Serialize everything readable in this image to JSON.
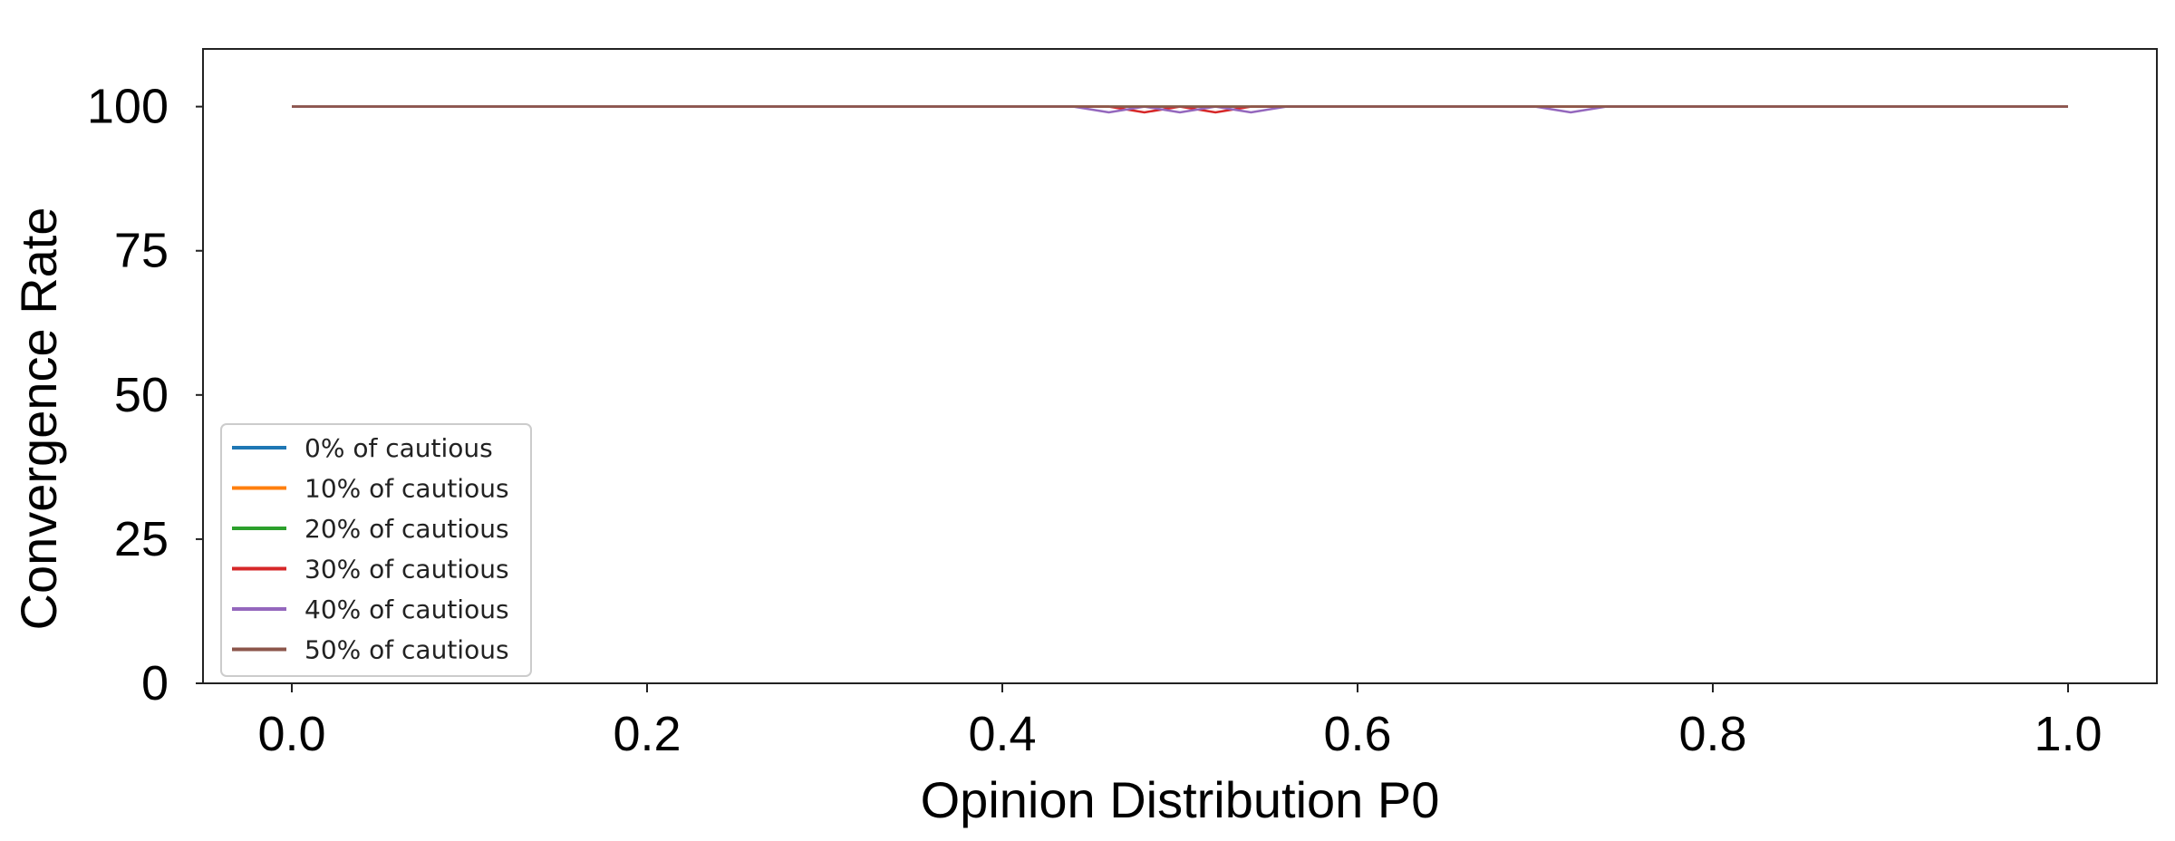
{
  "chart_data": {
    "type": "line",
    "xlabel": "Opinion Distribution P0",
    "ylabel": "Convergence Rate",
    "xlim": [
      -0.05,
      1.05
    ],
    "ylim": [
      0,
      110
    ],
    "xticks": [
      0.0,
      0.2,
      0.4,
      0.6,
      0.8,
      1.0
    ],
    "xtick_labels": [
      "0.0",
      "0.2",
      "0.4",
      "0.6",
      "0.8",
      "1.0"
    ],
    "yticks": [
      0,
      25,
      50,
      75,
      100
    ],
    "ytick_labels": [
      "0",
      "25",
      "50",
      "75",
      "100"
    ],
    "grid": false,
    "legend_position": "lower-left",
    "series": [
      {
        "name": "0% of cautious",
        "color": "#1f77b4",
        "x": [
          0.0,
          0.02,
          0.04,
          0.06,
          0.08,
          0.1,
          0.12,
          0.14,
          0.16,
          0.18,
          0.2,
          0.22,
          0.24,
          0.26,
          0.28,
          0.3,
          0.32,
          0.34,
          0.36,
          0.38,
          0.4,
          0.42,
          0.44,
          0.46,
          0.48,
          0.5,
          0.52,
          0.54,
          0.56,
          0.58,
          0.6,
          0.62,
          0.64,
          0.66,
          0.68,
          0.7,
          0.72,
          0.74,
          0.76,
          0.78,
          0.8,
          0.82,
          0.84,
          0.86,
          0.88,
          0.9,
          0.92,
          0.94,
          0.96,
          0.98,
          1.0
        ],
        "y": [
          100,
          100,
          100,
          100,
          100,
          100,
          100,
          100,
          100,
          100,
          100,
          100,
          100,
          100,
          100,
          100,
          100,
          100,
          100,
          100,
          100,
          100,
          100,
          100,
          100,
          100,
          100,
          100,
          100,
          100,
          100,
          100,
          100,
          100,
          100,
          100,
          100,
          100,
          100,
          100,
          100,
          100,
          100,
          100,
          100,
          100,
          100,
          100,
          100,
          100,
          100
        ]
      },
      {
        "name": "10% of cautious",
        "color": "#ff7f0e",
        "x": [
          0.0,
          0.02,
          0.04,
          0.06,
          0.08,
          0.1,
          0.12,
          0.14,
          0.16,
          0.18,
          0.2,
          0.22,
          0.24,
          0.26,
          0.28,
          0.3,
          0.32,
          0.34,
          0.36,
          0.38,
          0.4,
          0.42,
          0.44,
          0.46,
          0.48,
          0.5,
          0.52,
          0.54,
          0.56,
          0.58,
          0.6,
          0.62,
          0.64,
          0.66,
          0.68,
          0.7,
          0.72,
          0.74,
          0.76,
          0.78,
          0.8,
          0.82,
          0.84,
          0.86,
          0.88,
          0.9,
          0.92,
          0.94,
          0.96,
          0.98,
          1.0
        ],
        "y": [
          100,
          100,
          100,
          100,
          100,
          100,
          100,
          100,
          100,
          100,
          100,
          100,
          100,
          100,
          100,
          100,
          100,
          100,
          100,
          100,
          100,
          100,
          100,
          100,
          100,
          100,
          100,
          100,
          100,
          100,
          100,
          100,
          100,
          100,
          100,
          100,
          100,
          100,
          100,
          100,
          100,
          100,
          100,
          100,
          100,
          100,
          100,
          100,
          100,
          100,
          100
        ]
      },
      {
        "name": "20% of cautious",
        "color": "#2ca02c",
        "x": [
          0.0,
          0.02,
          0.04,
          0.06,
          0.08,
          0.1,
          0.12,
          0.14,
          0.16,
          0.18,
          0.2,
          0.22,
          0.24,
          0.26,
          0.28,
          0.3,
          0.32,
          0.34,
          0.36,
          0.38,
          0.4,
          0.42,
          0.44,
          0.46,
          0.48,
          0.5,
          0.52,
          0.54,
          0.56,
          0.58,
          0.6,
          0.62,
          0.64,
          0.66,
          0.68,
          0.7,
          0.72,
          0.74,
          0.76,
          0.78,
          0.8,
          0.82,
          0.84,
          0.86,
          0.88,
          0.9,
          0.92,
          0.94,
          0.96,
          0.98,
          1.0
        ],
        "y": [
          100,
          100,
          100,
          100,
          100,
          100,
          100,
          100,
          100,
          100,
          100,
          100,
          100,
          100,
          100,
          100,
          100,
          100,
          100,
          100,
          100,
          100,
          100,
          100,
          100,
          100,
          100,
          100,
          100,
          100,
          100,
          100,
          100,
          100,
          100,
          100,
          100,
          100,
          100,
          100,
          100,
          100,
          100,
          100,
          100,
          100,
          100,
          100,
          100,
          100,
          100
        ]
      },
      {
        "name": "30% of cautious",
        "color": "#d62728",
        "x": [
          0.0,
          0.02,
          0.04,
          0.06,
          0.08,
          0.1,
          0.12,
          0.14,
          0.16,
          0.18,
          0.2,
          0.22,
          0.24,
          0.26,
          0.28,
          0.3,
          0.32,
          0.34,
          0.36,
          0.38,
          0.4,
          0.42,
          0.44,
          0.46,
          0.48,
          0.5,
          0.52,
          0.54,
          0.56,
          0.58,
          0.6,
          0.62,
          0.64,
          0.66,
          0.68,
          0.7,
          0.72,
          0.74,
          0.76,
          0.78,
          0.8,
          0.82,
          0.84,
          0.86,
          0.88,
          0.9,
          0.92,
          0.94,
          0.96,
          0.98,
          1.0
        ],
        "y": [
          100,
          100,
          100,
          100,
          100,
          100,
          100,
          100,
          100,
          100,
          100,
          100,
          100,
          100,
          100,
          100,
          100,
          100,
          100,
          100,
          100,
          100,
          100,
          100,
          99,
          100,
          99,
          100,
          100,
          100,
          100,
          100,
          100,
          100,
          100,
          100,
          100,
          100,
          100,
          100,
          100,
          100,
          100,
          100,
          100,
          100,
          100,
          100,
          100,
          100,
          100
        ]
      },
      {
        "name": "40% of cautious",
        "color": "#9467bd",
        "x": [
          0.0,
          0.02,
          0.04,
          0.06,
          0.08,
          0.1,
          0.12,
          0.14,
          0.16,
          0.18,
          0.2,
          0.22,
          0.24,
          0.26,
          0.28,
          0.3,
          0.32,
          0.34,
          0.36,
          0.38,
          0.4,
          0.42,
          0.44,
          0.46,
          0.48,
          0.5,
          0.52,
          0.54,
          0.56,
          0.58,
          0.6,
          0.62,
          0.64,
          0.66,
          0.68,
          0.7,
          0.72,
          0.74,
          0.76,
          0.78,
          0.8,
          0.82,
          0.84,
          0.86,
          0.88,
          0.9,
          0.92,
          0.94,
          0.96,
          0.98,
          1.0
        ],
        "y": [
          100,
          100,
          100,
          100,
          100,
          100,
          100,
          100,
          100,
          100,
          100,
          100,
          100,
          100,
          100,
          100,
          100,
          100,
          100,
          100,
          100,
          100,
          100,
          99,
          100,
          99,
          100,
          99,
          100,
          100,
          100,
          100,
          100,
          100,
          100,
          100,
          99,
          100,
          100,
          100,
          100,
          100,
          100,
          100,
          100,
          100,
          100,
          100,
          100,
          100,
          100
        ]
      },
      {
        "name": "50% of cautious",
        "color": "#8c564b",
        "x": [
          0.0,
          0.02,
          0.04,
          0.06,
          0.08,
          0.1,
          0.12,
          0.14,
          0.16,
          0.18,
          0.2,
          0.22,
          0.24,
          0.26,
          0.28,
          0.3,
          0.32,
          0.34,
          0.36,
          0.38,
          0.4,
          0.42,
          0.44,
          0.46,
          0.48,
          0.5,
          0.52,
          0.54,
          0.56,
          0.58,
          0.6,
          0.62,
          0.64,
          0.66,
          0.68,
          0.7,
          0.72,
          0.74,
          0.76,
          0.78,
          0.8,
          0.82,
          0.84,
          0.86,
          0.88,
          0.9,
          0.92,
          0.94,
          0.96,
          0.98,
          1.0
        ],
        "y": [
          100,
          100,
          100,
          100,
          100,
          100,
          100,
          100,
          100,
          100,
          100,
          100,
          100,
          100,
          100,
          100,
          100,
          100,
          100,
          100,
          100,
          100,
          100,
          100,
          100,
          100,
          100,
          100,
          100,
          100,
          100,
          100,
          100,
          100,
          100,
          100,
          100,
          100,
          100,
          100,
          100,
          100,
          100,
          100,
          100,
          100,
          100,
          100,
          100,
          100,
          100
        ]
      }
    ]
  }
}
